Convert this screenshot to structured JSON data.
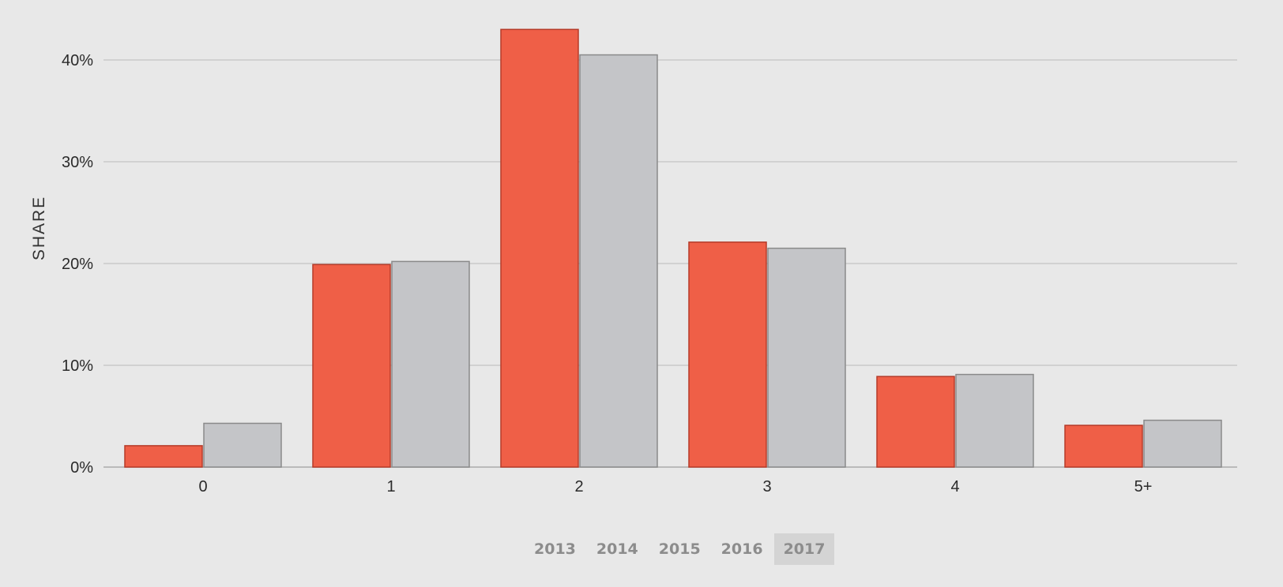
{
  "chart_data": {
    "type": "bar",
    "categories": [
      "0",
      "1",
      "2",
      "3",
      "4",
      "5+"
    ],
    "series": [
      {
        "values": [
          2.1,
          19.9,
          43.0,
          22.1,
          8.9,
          4.1
        ],
        "color": "#ef5f47"
      },
      {
        "values": [
          4.3,
          20.2,
          40.5,
          21.5,
          9.1,
          4.6
        ],
        "color": "#c4c5c8"
      }
    ],
    "ylabel": "SHARE",
    "ylim": [
      0,
      44
    ],
    "yticks": [
      {
        "value": 0,
        "label": "0%"
      },
      {
        "value": 10,
        "label": "10%"
      },
      {
        "value": 20,
        "label": "20%"
      },
      {
        "value": 30,
        "label": "30%"
      },
      {
        "value": 40,
        "label": "40%"
      }
    ],
    "grid": true,
    "colors": {
      "background": "#e8e8e8",
      "gridline": "#c9c9c9",
      "baseline": "#aaaaaa"
    }
  },
  "year_selector": {
    "years": [
      "2013",
      "2014",
      "2015",
      "2016",
      "2017"
    ],
    "selected": "2017"
  }
}
